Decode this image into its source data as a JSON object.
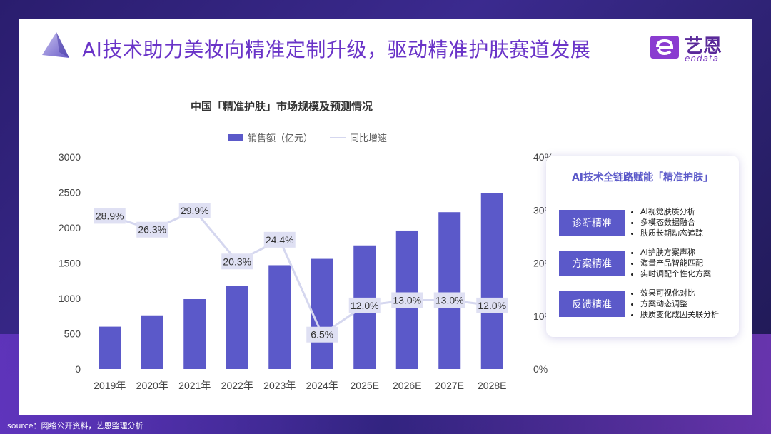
{
  "title": "AI技术助力美妆向精准定制升级，驱动精准护肤赛道发展",
  "brand": {
    "name_cn": "艺恩",
    "name_en": "endata"
  },
  "colors": {
    "bar": "#5b59c9",
    "line": "#d5d7ef",
    "title": "#6a34c8",
    "label_bg": "#dfe0f3"
  },
  "chart_data": {
    "type": "bar",
    "title": "中国「精准护肤」市场规模及预测情况",
    "categories": [
      "2019年",
      "2020年",
      "2021年",
      "2022年",
      "2023年",
      "2024年",
      "2025E",
      "2026E",
      "2027E",
      "2028E"
    ],
    "series": [
      {
        "name": "销售额（亿元）",
        "type": "bar",
        "axis": "left",
        "values": [
          600,
          760,
          990,
          1180,
          1470,
          1560,
          1750,
          1960,
          2220,
          2490
        ]
      },
      {
        "name": "同比增速",
        "type": "line",
        "axis": "right",
        "values": [
          28.9,
          26.3,
          29.9,
          20.3,
          24.4,
          6.5,
          12.0,
          13.0,
          13.0,
          12.0
        ],
        "labels": [
          "28.9%",
          "26.3%",
          "29.9%",
          "20.3%",
          "24.4%",
          "6.5%",
          "12.0%",
          "13.0%",
          "13.0%",
          "12.0%"
        ]
      }
    ],
    "y_left": {
      "min": 0,
      "max": 3000,
      "ticks": [
        "0",
        "500",
        "1000",
        "1500",
        "2000",
        "2500",
        "3000"
      ]
    },
    "y_right": {
      "min": 0,
      "max": 40,
      "ticks": [
        "0%",
        "10%",
        "20%",
        "30%",
        "40%"
      ]
    }
  },
  "panel": {
    "title": "AI技术全链路赋能「精准护肤」",
    "rows": [
      {
        "label": "诊断精准",
        "items": [
          "AI视觉肤质分析",
          "多模态数据融合",
          "肤质长期动态追踪"
        ]
      },
      {
        "label": "方案精准",
        "items": [
          "AI护肤方案声称",
          "海量产品智能匹配",
          "实时调配个性化方案"
        ]
      },
      {
        "label": "反馈精准",
        "items": [
          "效果可视化对比",
          "方案动态调整",
          "肤质变化成因关联分析"
        ]
      }
    ]
  },
  "source": "source：网络公开资料，艺恩整理分析"
}
